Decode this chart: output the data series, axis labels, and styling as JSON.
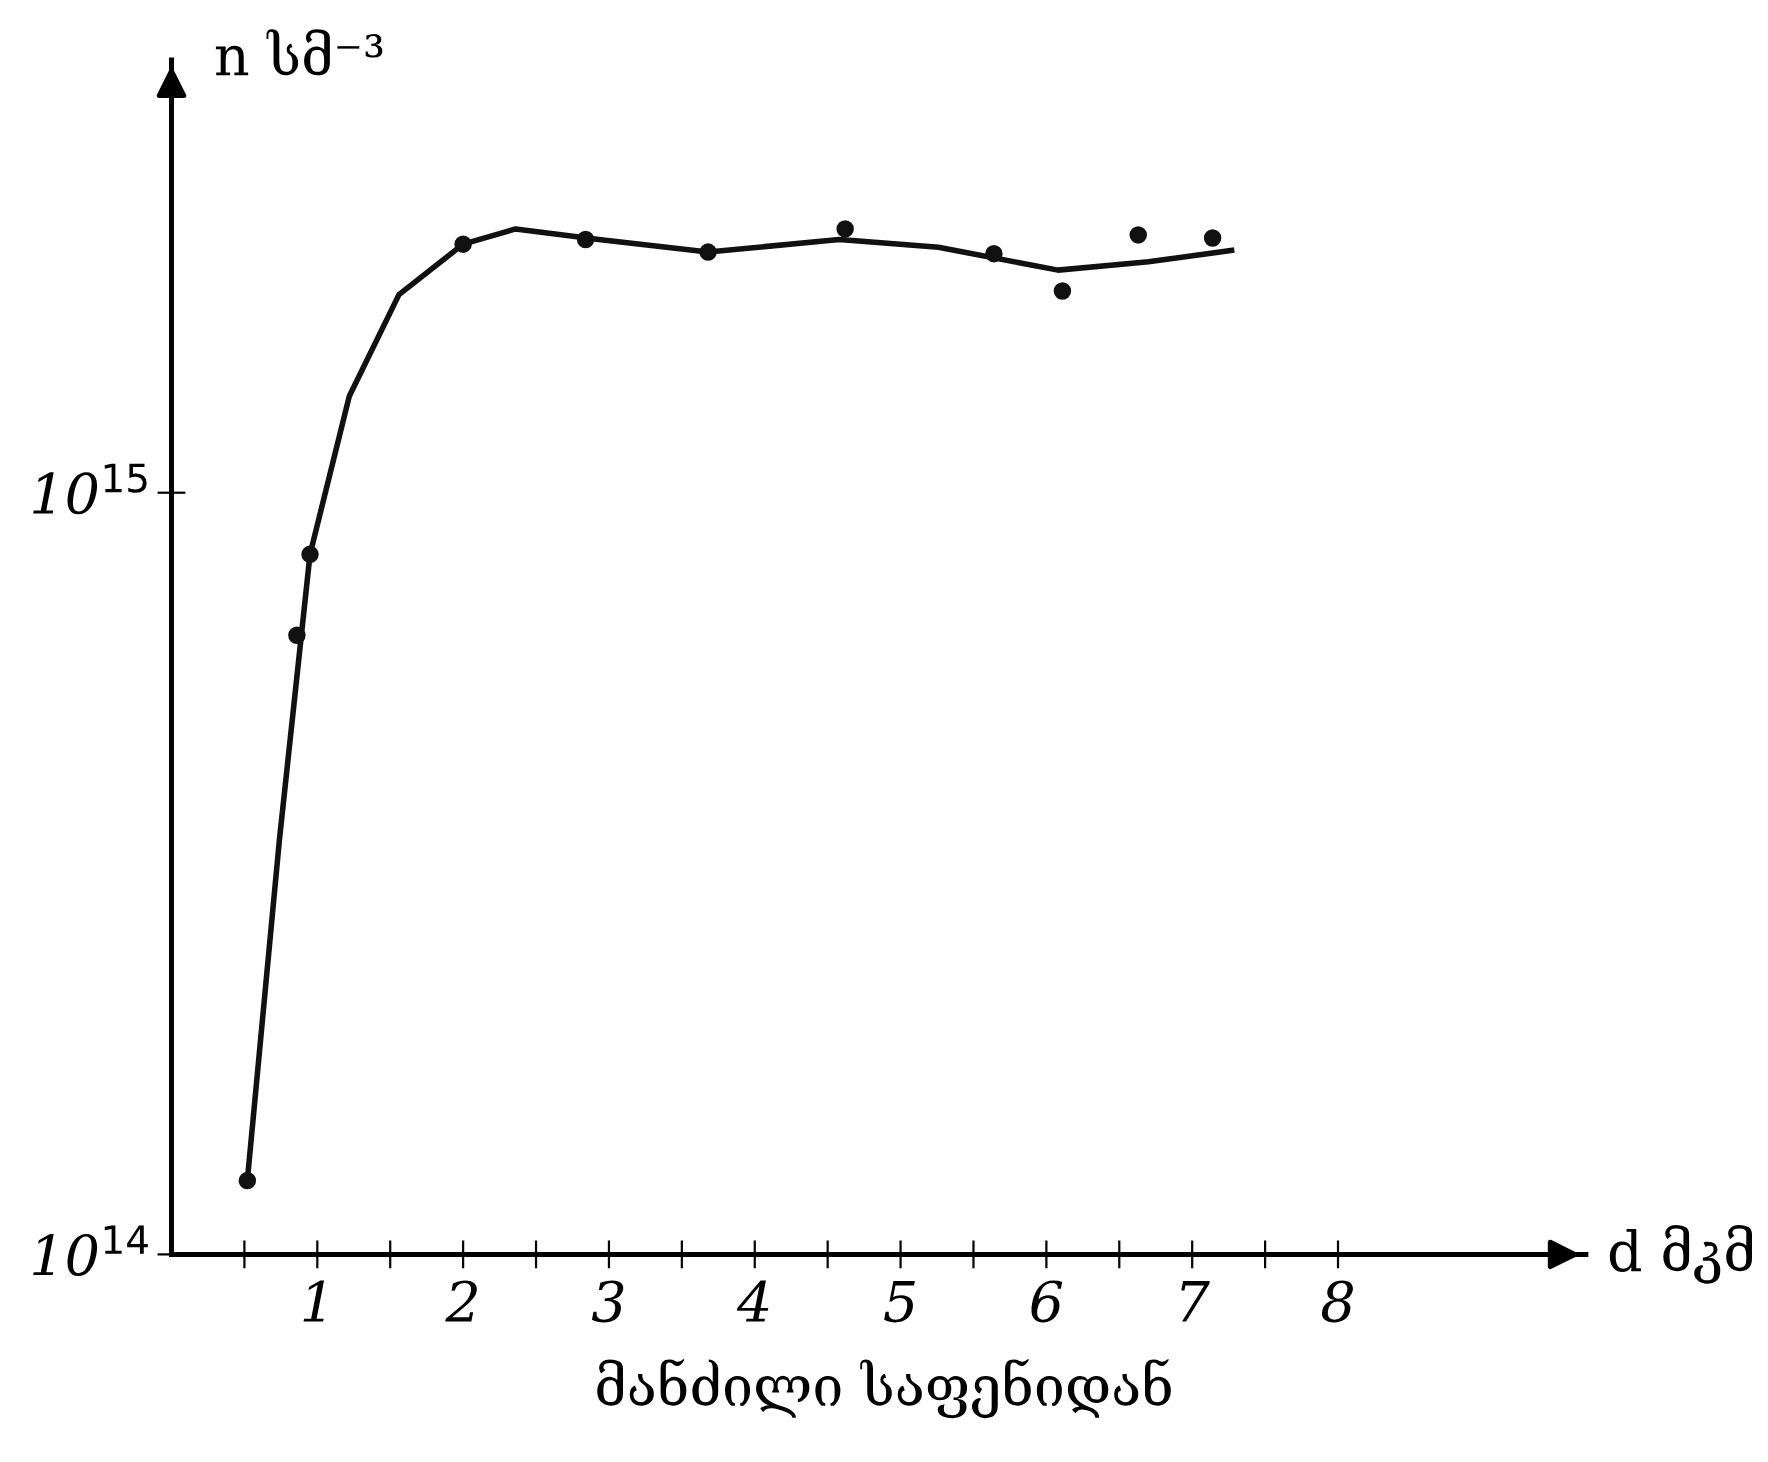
{
  "chart_data": {
    "type": "scatter",
    "ylabel": "n სმ⁻³",
    "xlabel": "d მკმ",
    "annotations": [
      "მანძილი საფენიდან"
    ],
    "log": "y",
    "grid": false,
    "legend": false,
    "xlim": [
      0,
      9.7
    ],
    "ylim": [
      100000000000000,
      3700000000000000
    ],
    "xticks": [
      {
        "value": 0.5,
        "label": null
      },
      1,
      {
        "value": 1.5,
        "label": null
      },
      2,
      {
        "value": 2.5,
        "label": null
      },
      3,
      {
        "value": 3.5,
        "label": null
      },
      4,
      {
        "value": 4.5,
        "label": null
      },
      5,
      {
        "value": 5.5,
        "label": null
      },
      6,
      {
        "value": 6.5,
        "label": null
      },
      7,
      {
        "value": 7.5,
        "label": null
      },
      8
    ],
    "yticks": [
      {
        "value": 100000000000000,
        "label": "10$^{14}$"
      },
      {
        "value": 1000000000000000,
        "label": "10$^{15}$"
      }
    ],
    "series": [
      {
        "color": "#111111",
        "marker": "circle",
        "x": [
          0.52,
          0.86,
          0.95,
          2.0,
          2.84,
          3.68,
          4.62,
          5.64,
          6.11,
          6.63,
          7.14
        ],
        "values": [
          125000000000000.0,
          650000000000000.0,
          830000000000000.0,
          2120000000000000.0,
          2150000000000000.0,
          2070000000000000.0,
          2220000000000000.0,
          2060000000000000.0,
          1840000000000000.0,
          2180000000000000.0,
          2160000000000000.0
        ]
      },
      {
        "type": "line",
        "color": "#111111",
        "marker": "none",
        "line_style": "solid",
        "x": [
          0.52,
          0.74,
          0.95,
          1.22,
          1.56,
          2.0,
          2.36,
          2.93,
          3.68,
          4.58,
          5.26,
          6.08,
          6.7,
          7.27
        ],
        "values": [
          125000000000000.0,
          350000000000000.0,
          830000000000000.0,
          1340000000000000.0,
          1820000000000000.0,
          2120000000000000.0,
          2220000000000000.0,
          2150000000000000.0,
          2070000000000000.0,
          2150000000000000.0,
          2100000000000000.0,
          1960000000000000.0,
          2010000000000000.0,
          2080000000000000.0
        ]
      }
    ]
  }
}
